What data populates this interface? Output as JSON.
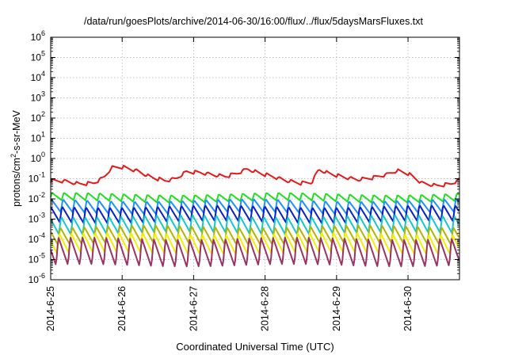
{
  "chart_data": {
    "type": "line",
    "title": "/data/run/goesPlots/archive/2014-06-30/16:00/flux/../flux/5daysMarsFluxes.txt",
    "xlabel": "Coordinated Universal Time (UTC)",
    "ylabel_main": "protons/cm",
    "ylabel_sup": "2",
    "ylabel_rest": "-s-sr-MeV",
    "x_tick_labels": [
      "2014-6-25",
      "2014-6-26",
      "2014-6-27",
      "2014-6-28",
      "2014-6-29",
      "2014-6-30"
    ],
    "x_tick_days": [
      0,
      1,
      2,
      3,
      4,
      5
    ],
    "x_range_days": [
      0,
      5.72
    ],
    "y_scale": "log",
    "y_ticks": [
      {
        "exp": 6,
        "base": "10",
        "sup": "6"
      },
      {
        "exp": 5,
        "base": "10",
        "sup": "5"
      },
      {
        "exp": 4,
        "base": "10",
        "sup": "4"
      },
      {
        "exp": 3,
        "base": "10",
        "sup": "3"
      },
      {
        "exp": 2,
        "base": "10",
        "sup": "2"
      },
      {
        "exp": 1,
        "base": "10",
        "sup": "1"
      },
      {
        "exp": 0,
        "base": "10",
        "sup": "0"
      },
      {
        "exp": -1,
        "base": "10",
        "sup": "-1"
      },
      {
        "exp": -2,
        "base": "10",
        "sup": "-2"
      },
      {
        "exp": -3,
        "base": "10",
        "sup": "-3"
      },
      {
        "exp": -4,
        "base": "10",
        "sup": "-4"
      },
      {
        "exp": -5,
        "base": "10",
        "sup": "-5"
      },
      {
        "exp": -6,
        "base": "10",
        "sup": "-6"
      }
    ],
    "ylim_exp": [
      -6,
      6
    ],
    "grid": true,
    "sawtooth_period_days": 0.1667,
    "series": [
      {
        "color": "#e8191a",
        "kind": "envelope",
        "envelope": [
          [
            0.0,
            0.08
          ],
          [
            0.2,
            0.075
          ],
          [
            0.4,
            0.055
          ],
          [
            0.6,
            0.06
          ],
          [
            0.75,
            0.12
          ],
          [
            0.85,
            0.35
          ],
          [
            1.0,
            0.38
          ],
          [
            1.2,
            0.25
          ],
          [
            1.4,
            0.12
          ],
          [
            1.6,
            0.08
          ],
          [
            1.75,
            0.1
          ],
          [
            1.9,
            0.22
          ],
          [
            2.1,
            0.2
          ],
          [
            2.3,
            0.15
          ],
          [
            2.45,
            0.13
          ],
          [
            2.6,
            0.18
          ],
          [
            2.75,
            0.3
          ],
          [
            2.9,
            0.2
          ],
          [
            3.1,
            0.13
          ],
          [
            3.3,
            0.08
          ],
          [
            3.5,
            0.06
          ],
          [
            3.65,
            0.065
          ],
          [
            3.75,
            0.28
          ],
          [
            3.9,
            0.18
          ],
          [
            4.1,
            0.12
          ],
          [
            4.3,
            0.09
          ],
          [
            4.5,
            0.11
          ],
          [
            4.7,
            0.16
          ],
          [
            4.85,
            0.25
          ],
          [
            5.0,
            0.18
          ],
          [
            5.2,
            0.06
          ],
          [
            5.4,
            0.045
          ],
          [
            5.6,
            0.055
          ],
          [
            5.72,
            0.09
          ]
        ],
        "ripple_decades": 0.18
      },
      {
        "color": "#22dd22",
        "kind": "saw",
        "top": 0.018,
        "bottom": 0.0075
      },
      {
        "color": "#1e90ff",
        "kind": "saw",
        "top": 0.009,
        "bottom": 0.002
      },
      {
        "color": "#0a1ec8",
        "kind": "saw",
        "top": 0.0045,
        "bottom": 0.0007
      },
      {
        "color": "#17c8c8",
        "kind": "saw",
        "top": 0.0015,
        "bottom": 0.0002
      },
      {
        "color": "#b4b400",
        "kind": "saw",
        "top": 0.00045,
        "bottom": 6e-05
      },
      {
        "color": "#f0f000",
        "kind": "saw",
        "top": 0.0002,
        "bottom": 2e-05
      },
      {
        "color": "#993366",
        "kind": "saw",
        "top": 0.00012,
        "bottom": 4.5e-06
      }
    ]
  }
}
